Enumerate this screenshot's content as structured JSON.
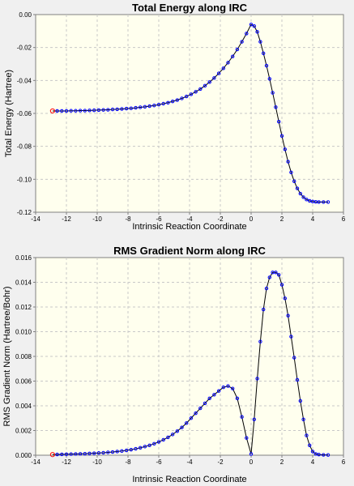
{
  "chart_data": [
    {
      "type": "line",
      "title": "Total Energy along IRC",
      "xlabel": "Intrinsic Reaction Coordinate",
      "ylabel": "Total Energy (Hartree)",
      "xlim": [
        -14,
        6
      ],
      "ylim": [
        -0.12,
        0.0
      ],
      "xticks": [
        "-14",
        "-12",
        "-10",
        "-8",
        "-6",
        "-4",
        "-2",
        "0",
        "2",
        "4",
        "6"
      ],
      "yticks": [
        "0.00",
        "-0.02",
        "-0.04",
        "-0.06",
        "-0.08",
        "-0.10",
        "-0.12"
      ],
      "grid": true,
      "marker_color": "#0000ff",
      "start_marker_color": "#ff0000",
      "line_color": "#000000",
      "series": [
        {
          "x": [
            -12.9,
            -12.6,
            -12.3,
            -12.0,
            -11.7,
            -11.4,
            -11.1,
            -10.8,
            -10.5,
            -10.2,
            -9.9,
            -9.6,
            -9.3,
            -9.0,
            -8.7,
            -8.4,
            -8.1,
            -7.8,
            -7.5,
            -7.2,
            -6.9,
            -6.6,
            -6.3,
            -6.0,
            -5.7,
            -5.4,
            -5.1,
            -4.8,
            -4.5,
            -4.2,
            -3.9,
            -3.6,
            -3.3,
            -3.0,
            -2.7,
            -2.4,
            -2.1,
            -1.8,
            -1.5,
            -1.2,
            -0.9,
            -0.6,
            -0.3,
            0.0,
            0.2,
            0.4,
            0.6,
            0.8,
            1.0,
            1.2,
            1.4,
            1.6,
            1.8,
            2.0,
            2.2,
            2.4,
            2.6,
            2.8,
            3.0,
            3.2,
            3.4,
            3.6,
            3.8,
            4.0,
            4.2,
            4.4,
            4.7,
            5.0
          ],
          "y": [
            -0.0585,
            -0.0585,
            -0.0585,
            -0.0585,
            -0.0584,
            -0.0584,
            -0.0583,
            -0.0583,
            -0.0582,
            -0.0581,
            -0.058,
            -0.0579,
            -0.0578,
            -0.0576,
            -0.0575,
            -0.0573,
            -0.0571,
            -0.0569,
            -0.0566,
            -0.0563,
            -0.056,
            -0.0556,
            -0.0552,
            -0.0547,
            -0.0541,
            -0.0535,
            -0.0527,
            -0.0519,
            -0.0509,
            -0.0497,
            -0.0484,
            -0.0469,
            -0.0452,
            -0.0432,
            -0.041,
            -0.0385,
            -0.0357,
            -0.0326,
            -0.0292,
            -0.0254,
            -0.0212,
            -0.0165,
            -0.0115,
            -0.006,
            -0.007,
            -0.0105,
            -0.0165,
            -0.0235,
            -0.031,
            -0.039,
            -0.0475,
            -0.0562,
            -0.065,
            -0.0737,
            -0.0818,
            -0.0893,
            -0.0958,
            -0.1012,
            -0.1055,
            -0.1087,
            -0.1109,
            -0.1123,
            -0.1131,
            -0.1135,
            -0.1137,
            -0.1138,
            -0.1138,
            -0.1138
          ]
        }
      ]
    },
    {
      "type": "line",
      "title": "RMS Gradient Norm along IRC",
      "xlabel": "Intrinsic Reaction Coordinate",
      "ylabel": "RMS Gradient Norm (Hartree/Bohr)",
      "xlim": [
        -14,
        6
      ],
      "ylim": [
        0.0,
        0.016
      ],
      "xticks": [
        "-14",
        "-12",
        "-10",
        "-8",
        "-6",
        "-4",
        "-2",
        "0",
        "2",
        "4",
        "6"
      ],
      "yticks": [
        "0.016",
        "0.014",
        "0.012",
        "0.010",
        "0.008",
        "0.006",
        "0.004",
        "0.002",
        "0.000"
      ],
      "grid": true,
      "marker_color": "#0000ff",
      "start_marker_color": "#ff0000",
      "line_color": "#000000",
      "series": [
        {
          "x": [
            -12.9,
            -12.6,
            -12.3,
            -12.0,
            -11.7,
            -11.4,
            -11.1,
            -10.8,
            -10.5,
            -10.2,
            -9.9,
            -9.6,
            -9.3,
            -9.0,
            -8.7,
            -8.4,
            -8.1,
            -7.8,
            -7.5,
            -7.2,
            -6.9,
            -6.6,
            -6.3,
            -6.0,
            -5.7,
            -5.4,
            -5.1,
            -4.8,
            -4.5,
            -4.2,
            -3.9,
            -3.6,
            -3.3,
            -3.0,
            -2.7,
            -2.4,
            -2.1,
            -1.8,
            -1.5,
            -1.2,
            -0.9,
            -0.6,
            -0.3,
            0.0,
            0.2,
            0.4,
            0.6,
            0.8,
            1.0,
            1.2,
            1.4,
            1.6,
            1.8,
            2.0,
            2.2,
            2.4,
            2.6,
            2.8,
            3.0,
            3.2,
            3.4,
            3.6,
            3.8,
            4.0,
            4.2,
            4.4,
            4.7,
            5.0
          ],
          "y": [
            5e-05,
            6e-05,
            7e-05,
            8e-05,
            9e-05,
            0.0001,
            0.00011,
            0.00012,
            0.00014,
            0.00016,
            0.00018,
            0.0002,
            0.00023,
            0.00026,
            0.0003,
            0.00034,
            0.00039,
            0.00045,
            0.00052,
            0.0006,
            0.0007,
            0.0008,
            0.00093,
            0.00108,
            0.00125,
            0.00145,
            0.00168,
            0.00195,
            0.00225,
            0.0026,
            0.003,
            0.0034,
            0.0038,
            0.0042,
            0.0046,
            0.0049,
            0.0052,
            0.0055,
            0.0056,
            0.0054,
            0.0046,
            0.0031,
            0.0014,
            0.0001,
            0.0029,
            0.0062,
            0.0092,
            0.0118,
            0.0135,
            0.0144,
            0.0148,
            0.0148,
            0.0146,
            0.0138,
            0.0127,
            0.0113,
            0.0096,
            0.0079,
            0.0061,
            0.0044,
            0.0029,
            0.0016,
            0.0008,
            0.0003,
            0.0001,
            5e-05,
            3e-05,
            2e-05
          ]
        }
      ]
    }
  ]
}
